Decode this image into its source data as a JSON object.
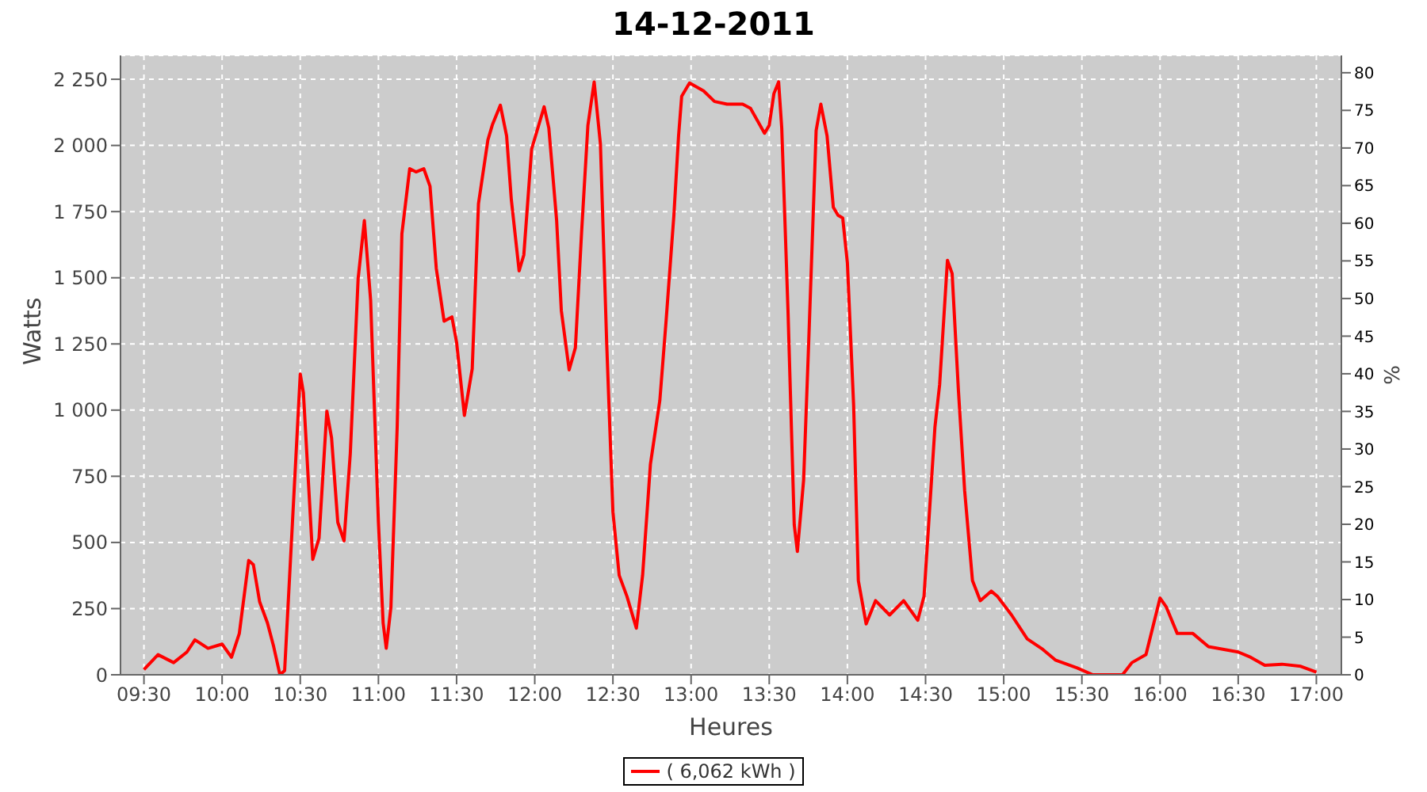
{
  "chart_data": {
    "type": "line",
    "title": "14-12-2011",
    "xlabel": "Heures",
    "ylabel": "Watts",
    "y2label": "%",
    "x": [
      9.5,
      9.59,
      9.69,
      9.775,
      9.826,
      9.91,
      10.0,
      10.06,
      10.11,
      10.17,
      10.2,
      10.24,
      10.29,
      10.33,
      10.37,
      10.4,
      10.45,
      10.5,
      10.52,
      10.58,
      10.62,
      10.67,
      10.7,
      10.74,
      10.78,
      10.82,
      10.87,
      10.91,
      10.95,
      11.0,
      11.03,
      11.05,
      11.08,
      11.12,
      11.15,
      11.2,
      11.24,
      11.29,
      11.33,
      11.37,
      11.42,
      11.47,
      11.5,
      11.55,
      11.6,
      11.64,
      11.7,
      11.73,
      11.78,
      11.82,
      11.85,
      11.9,
      11.93,
      11.98,
      12.06,
      12.09,
      12.14,
      12.17,
      12.22,
      12.26,
      12.3,
      12.34,
      12.38,
      12.42,
      12.46,
      12.5,
      12.54,
      12.59,
      12.63,
      12.65,
      12.69,
      12.74,
      12.8,
      12.84,
      12.89,
      12.92,
      12.94,
      12.99,
      13.08,
      13.15,
      13.23,
      13.33,
      13.38,
      13.47,
      13.5,
      13.53,
      13.56,
      13.58,
      13.62,
      13.66,
      13.68,
      13.72,
      13.75,
      13.8,
      13.83,
      13.87,
      13.91,
      13.94,
      13.97,
      14.0,
      14.04,
      14.07,
      14.12,
      14.18,
      14.27,
      14.36,
      14.45,
      14.49,
      14.56,
      14.59,
      14.64,
      14.67,
      14.71,
      14.75,
      14.8,
      14.85,
      14.92,
      14.96,
      15.05,
      15.15,
      15.25,
      15.33,
      15.47,
      15.57,
      15.76,
      15.82,
      15.91,
      16.0,
      16.04,
      16.11,
      16.21,
      16.31,
      16.5,
      16.58,
      16.67,
      16.78,
      16.9,
      17.0
    ],
    "series": [
      {
        "name": "( 6,062 kWh )",
        "color": "#ff0000",
        "values": [
          20,
          76,
          46,
          86,
          132,
          100,
          116,
          66,
          156,
          432,
          416,
          276,
          196,
          106,
          0,
          16,
          576,
          1136,
          1066,
          436,
          516,
          996,
          896,
          576,
          506,
          836,
          1496,
          1716,
          1416,
          576,
          196,
          100,
          256,
          936,
          1666,
          1912,
          1900,
          1912,
          1846,
          1536,
          1336,
          1352,
          1256,
          980,
          1156,
          1780,
          2020,
          2080,
          2152,
          2036,
          1796,
          1526,
          1586,
          1986,
          2146,
          2066,
          1716,
          1376,
          1152,
          1236,
          1676,
          2076,
          2240,
          2006,
          1256,
          616,
          376,
          296,
          216,
          176,
          376,
          796,
          1036,
          1336,
          1736,
          2036,
          2186,
          2236,
          2206,
          2166,
          2156,
          2156,
          2140,
          2046,
          2076,
          2196,
          2240,
          2066,
          1376,
          566,
          466,
          736,
          1216,
          2056,
          2156,
          2036,
          1766,
          1736,
          1726,
          1556,
          1016,
          356,
          192,
          280,
          226,
          280,
          206,
          296,
          936,
          1096,
          1566,
          1516,
          1076,
          696,
          356,
          280,
          316,
          296,
          226,
          136,
          96,
          56,
          26,
          0,
          0,
          46,
          76,
          290,
          256,
          156,
          156,
          106,
          86,
          66,
          36,
          40,
          32,
          10
        ]
      }
    ],
    "xlim": [
      9.35,
      17.16
    ],
    "xticks": [
      {
        "value": 9.5,
        "label": "09:30"
      },
      {
        "value": 10,
        "label": "10:00"
      },
      {
        "value": 10.5,
        "label": "10:30"
      },
      {
        "value": 11,
        "label": "11:00"
      },
      {
        "value": 11.5,
        "label": "11:30"
      },
      {
        "value": 12,
        "label": "12:00"
      },
      {
        "value": 12.5,
        "label": "12:30"
      },
      {
        "value": 13,
        "label": "13:00"
      },
      {
        "value": 13.5,
        "label": "13:30"
      },
      {
        "value": 14,
        "label": "14:00"
      },
      {
        "value": 14.5,
        "label": "14:30"
      },
      {
        "value": 15,
        "label": "15:00"
      },
      {
        "value": 15.5,
        "label": "15:30"
      },
      {
        "value": 16,
        "label": "16:00"
      },
      {
        "value": 16.5,
        "label": "16:30"
      },
      {
        "value": 17,
        "label": "17:00"
      }
    ],
    "ylim": [
      0,
      2340
    ],
    "yticks": [
      0,
      250,
      500,
      750,
      {
        "value": 1000,
        "label": "1 000"
      },
      {
        "value": 1250,
        "label": "1 250"
      },
      {
        "value": 1500,
        "label": "1 500"
      },
      {
        "value": 1750,
        "label": "1 750"
      },
      {
        "value": 2000,
        "label": "2 000"
      },
      {
        "value": 2250,
        "label": "2 250"
      }
    ],
    "y2lim": [
      0,
      82.3
    ],
    "y2ticks": [
      0,
      5,
      10,
      15,
      20,
      25,
      30,
      35,
      40,
      45,
      50,
      55,
      60,
      65,
      70,
      75,
      80
    ],
    "grid": true,
    "legend": "bottom",
    "marker": "none",
    "line_style": "solid"
  }
}
